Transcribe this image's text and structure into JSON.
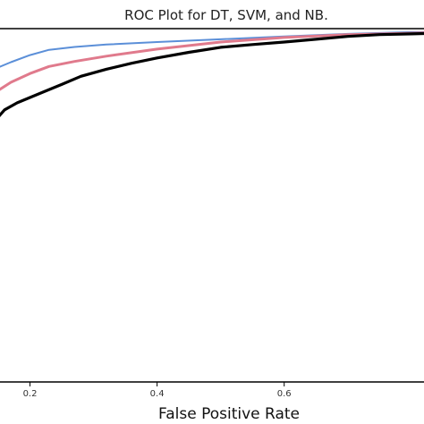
{
  "chart_data": {
    "type": "line",
    "title": "ROC Plot for DT, SVM, and NB.",
    "xlabel": "False Positive Rate",
    "ylabel": "",
    "xlim": [
      0.15,
      0.82
    ],
    "ylim": [
      0.0,
      1.0
    ],
    "xticks": [
      {
        "value": 0.2,
        "label": "0.2"
      },
      {
        "value": 0.4,
        "label": "0.4"
      },
      {
        "value": 0.6,
        "label": "0.6"
      }
    ],
    "grid": false,
    "legend": "none",
    "series": [
      {
        "color": "#5b8fd8",
        "x": [
          0.15,
          0.17,
          0.2,
          0.23,
          0.27,
          0.32,
          0.4,
          0.5,
          0.6,
          0.7,
          0.8,
          0.82
        ],
        "y": [
          0.89,
          0.905,
          0.925,
          0.94,
          0.948,
          0.955,
          0.962,
          0.97,
          0.978,
          0.985,
          0.99,
          0.99
        ]
      },
      {
        "color": "#e07a8c",
        "x": [
          0.15,
          0.17,
          0.2,
          0.23,
          0.27,
          0.32,
          0.4,
          0.5,
          0.6,
          0.7,
          0.8,
          0.82
        ],
        "y": [
          0.825,
          0.848,
          0.873,
          0.893,
          0.907,
          0.922,
          0.942,
          0.962,
          0.975,
          0.983,
          0.987,
          0.988
        ]
      },
      {
        "color": "#000000",
        "x": [
          0.15,
          0.16,
          0.18,
          0.2,
          0.22,
          0.25,
          0.28,
          0.32,
          0.36,
          0.4,
          0.45,
          0.5,
          0.55,
          0.6,
          0.65,
          0.7,
          0.75,
          0.8,
          0.82
        ],
        "y": [
          0.75,
          0.77,
          0.79,
          0.805,
          0.82,
          0.842,
          0.865,
          0.885,
          0.902,
          0.917,
          0.933,
          0.947,
          0.955,
          0.962,
          0.97,
          0.978,
          0.983,
          0.985,
          0.986
        ]
      }
    ]
  }
}
